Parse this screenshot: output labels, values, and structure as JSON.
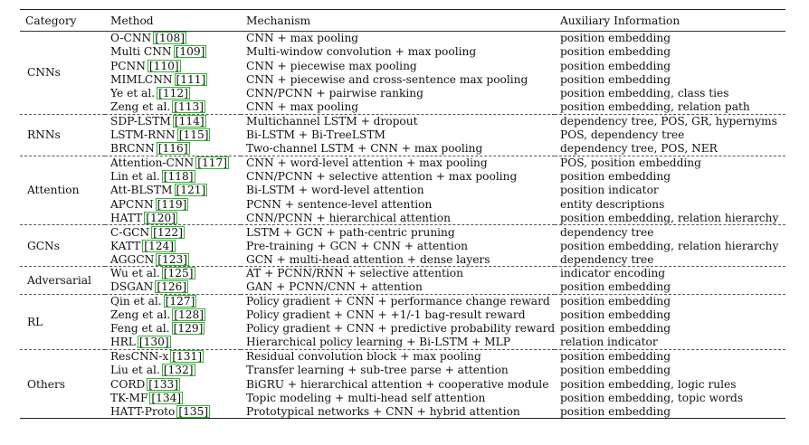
{
  "headers": {
    "category": "Category",
    "method": "Method",
    "mechanism": "Mechanism",
    "auxiliary": "Auxiliary Information"
  },
  "groups": [
    {
      "category": "CNNs",
      "rows": [
        {
          "method": "O-CNN",
          "ref": "[108]",
          "mechanism": "CNN + max pooling",
          "aux": "position embedding"
        },
        {
          "method": "Multi CNN",
          "ref": "[109]",
          "mechanism": "Multi-window convolution + max pooling",
          "aux": "position embedding"
        },
        {
          "method": "PCNN",
          "ref": "[110]",
          "mechanism": "CNN + piecewise max pooling",
          "aux": "position embedding"
        },
        {
          "method": "MIMLCNN",
          "ref": "[111]",
          "mechanism": "CNN + piecewise and cross-sentence max pooling",
          "aux": "position embedding"
        },
        {
          "method": "Ye et al.",
          "ref": "[112]",
          "mechanism": "CNN/PCNN + pairwise ranking",
          "aux": "position embedding, class ties"
        },
        {
          "method": "Zeng et al.",
          "ref": "[113]",
          "mechanism": "CNN + max pooling",
          "aux": "position embedding, relation path"
        }
      ]
    },
    {
      "category": "RNNs",
      "rows": [
        {
          "method": "SDP-LSTM",
          "ref": "[114]",
          "mechanism": "Multichannel LSTM + dropout",
          "aux": "dependency tree, POS, GR, hypernyms"
        },
        {
          "method": "LSTM-RNN",
          "ref": "[115]",
          "mechanism": "Bi-LSTM + Bi-TreeLSTM",
          "aux": "POS, dependency tree"
        },
        {
          "method": "BRCNN",
          "ref": "[116]",
          "mechanism": "Two-channel LSTM + CNN + max pooling",
          "aux": "dependency tree, POS, NER"
        }
      ]
    },
    {
      "category": "Attention",
      "rows": [
        {
          "method": "Attention-CNN",
          "ref": "[117]",
          "mechanism": "CNN + word-level attention + max pooling",
          "aux": "POS, position embedding"
        },
        {
          "method": "Lin et al.",
          "ref": "[118]",
          "mechanism": "CNN/PCNN + selective attention + max pooling",
          "aux": "position embedding"
        },
        {
          "method": "Att-BLSTM",
          "ref": "[121]",
          "mechanism": "Bi-LSTM + word-level attention",
          "aux": "position indicator"
        },
        {
          "method": "APCNN",
          "ref": "[119]",
          "mechanism": "PCNN + sentence-level attention",
          "aux": "entity descriptions"
        },
        {
          "method": "HATT",
          "ref": "[120]",
          "mechanism": "CNN/PCNN + hierarchical attention",
          "aux": "position embedding, relation hierarchy"
        }
      ]
    },
    {
      "category": "GCNs",
      "rows": [
        {
          "method": "C-GCN",
          "ref": "[122]",
          "mechanism": "LSTM + GCN + path-centric pruning",
          "aux": "dependency tree"
        },
        {
          "method": "KATT",
          "ref": "[124]",
          "mechanism": "Pre-training + GCN + CNN + attention",
          "aux": "position embedding, relation hierarchy"
        },
        {
          "method": "AGGCN",
          "ref": "[123]",
          "mechanism": "GCN + multi-head attention + dense layers",
          "aux": "dependency tree"
        }
      ]
    },
    {
      "category": "Adversarial",
      "rows": [
        {
          "method": "Wu et al.",
          "ref": "[125]",
          "mechanism": "AT + PCNN/RNN + selective attention",
          "aux": "indicator encoding"
        },
        {
          "method": "DSGAN",
          "ref": "[126]",
          "mechanism": "GAN + PCNN/CNN + attention",
          "aux": "position embedding"
        }
      ]
    },
    {
      "category": "RL",
      "rows": [
        {
          "method": "Qin et al.",
          "ref": "[127]",
          "mechanism": "Policy gradient + CNN + performance change reward",
          "aux": "position embedding"
        },
        {
          "method": "Zeng et al.",
          "ref": "[128]",
          "mechanism": "Policy gradient + CNN + +1/-1 bag-result reward",
          "aux": "position embedding"
        },
        {
          "method": "Feng et al.",
          "ref": "[129]",
          "mechanism": "Policy gradient + CNN + predictive probability reward",
          "aux": "position embedding"
        },
        {
          "method": "HRL",
          "ref": "[130]",
          "mechanism": "Hierarchical policy learning + Bi-LSTM + MLP",
          "aux": "relation indicator"
        }
      ]
    },
    {
      "category": "Others",
      "rows": [
        {
          "method": "ResCNN-x",
          "ref": "[131]",
          "mechanism": "Residual convolution block + max pooling",
          "aux": "position embedding"
        },
        {
          "method": "Liu et al.",
          "ref": "[132]",
          "mechanism": "Transfer learning + sub-tree parse + attention",
          "aux": "position embedding"
        },
        {
          "method": "CORD",
          "ref": "[133]",
          "mechanism": "BiGRU + hierarchical attention + cooperative module",
          "aux": "position embedding, logic rules"
        },
        {
          "method": "TK-MF",
          "ref": "[134]",
          "mechanism": "Topic modeling + multi-head self attention",
          "aux": "position embedding, topic words"
        },
        {
          "method": "HATT-Proto",
          "ref": "[135]",
          "mechanism": "Prototypical networks + CNN + hybrid attention",
          "aux": "position embedding"
        }
      ]
    }
  ]
}
